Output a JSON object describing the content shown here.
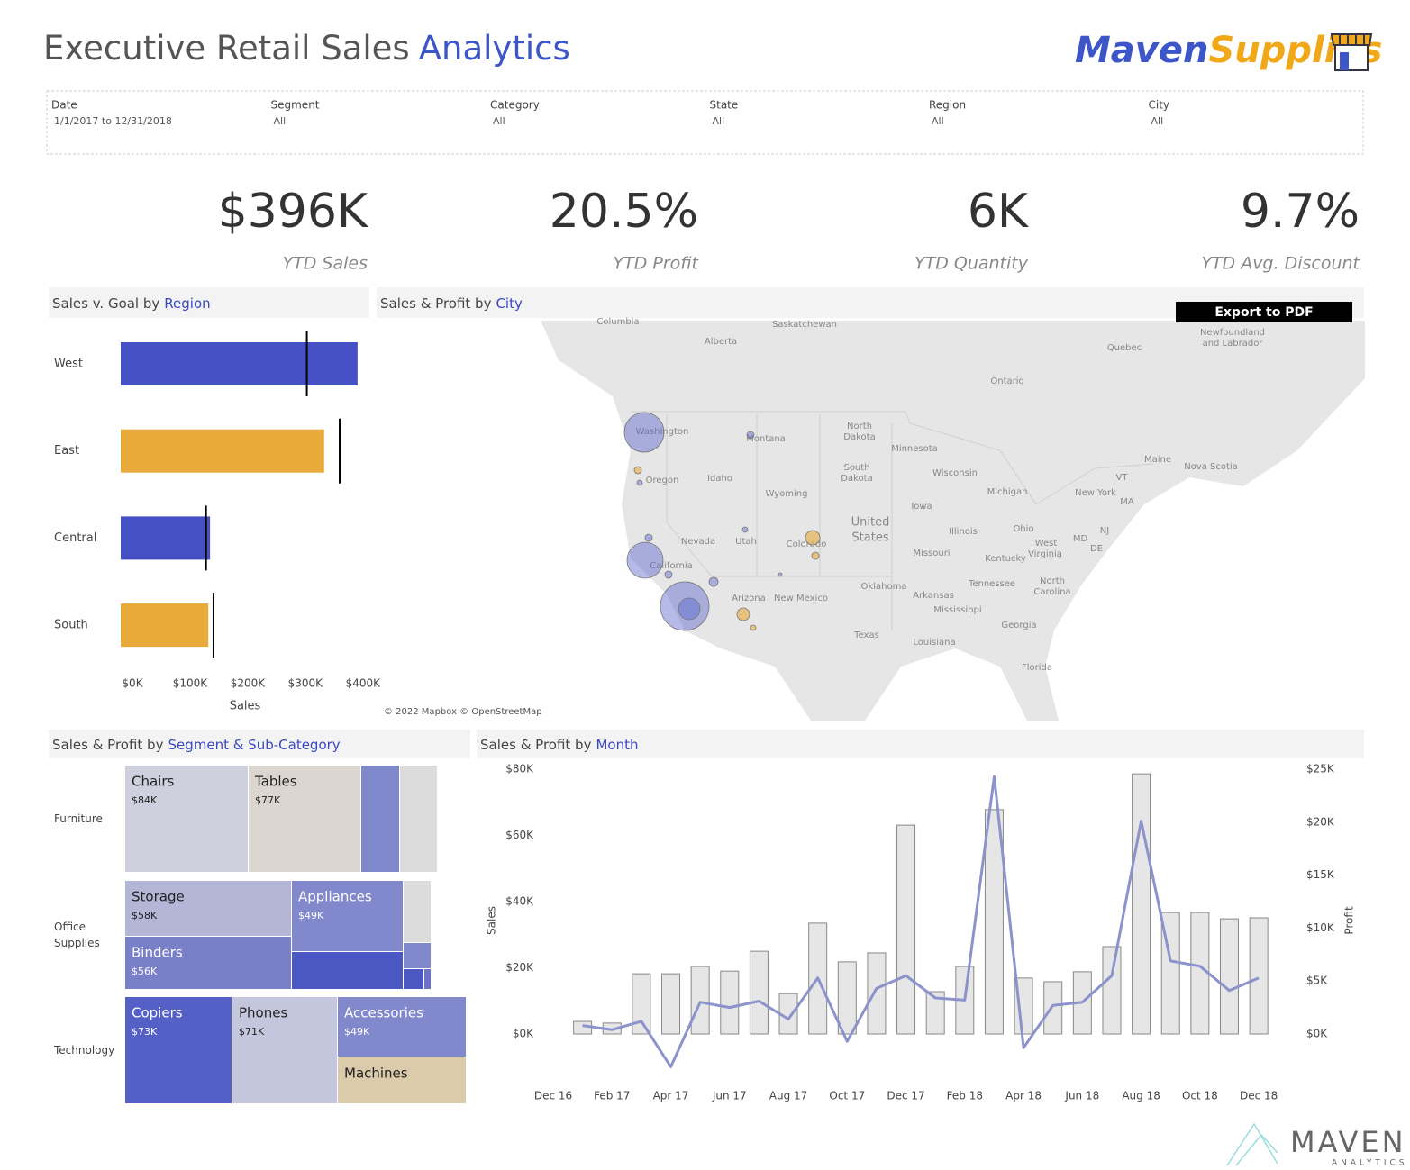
{
  "header": {
    "title": "Executive Retail Sales",
    "title_highlight": "Analytics",
    "logo_left": "Maven",
    "logo_right": "Supplies"
  },
  "filters": [
    {
      "label": "Date",
      "value": "1/1/2017 to 12/31/2018"
    },
    {
      "label": "Segment",
      "value": "All"
    },
    {
      "label": "Category",
      "value": "All"
    },
    {
      "label": "State",
      "value": "All"
    },
    {
      "label": "Region",
      "value": "All"
    },
    {
      "label": "City",
      "value": "All"
    }
  ],
  "kpis": [
    {
      "value": "$396K",
      "label": "YTD Sales"
    },
    {
      "value": "20.5%",
      "label": "YTD Profit"
    },
    {
      "value": "6K",
      "label": "YTD Quantity"
    },
    {
      "value": "9.7%",
      "label": "YTD Avg. Discount"
    }
  ],
  "export_button": "Export to PDF",
  "footer": {
    "brand": "MAVEN",
    "tagline": "ANALYTICS"
  },
  "chart_data": [
    {
      "type": "bullet",
      "title": "Sales v. Goal by",
      "title_highlight": "Region",
      "categories": [
        "West",
        "East",
        "Central",
        "South"
      ],
      "values": [
        411000,
        353000,
        155000,
        152000
      ],
      "colors": [
        "#4550c4",
        "#e8aa38",
        "#4550c4",
        "#e8aa38"
      ],
      "goals": [
        323000,
        380000,
        148000,
        161000
      ],
      "goal_color": "#000000",
      "xlim": [
        0,
        430000
      ],
      "xticks": [
        {
          "value": 0,
          "label": "$0K"
        },
        {
          "value": 100000,
          "label": "$100K"
        },
        {
          "value": 200000,
          "label": "$200K"
        },
        {
          "value": 300000,
          "label": "$300K"
        },
        {
          "value": 400000,
          "label": "$400K"
        }
      ],
      "xlabel": "Sales"
    },
    {
      "type": "map",
      "title": "Sales & Profit by",
      "title_highlight": "City",
      "labels": [
        "Columbia",
        "Saskatchewan",
        "Alberta",
        "Quebec",
        "Newfoundland",
        "and Labrador",
        "Ontario",
        "Washington",
        "Montana",
        "North",
        "Dakota",
        "Minnesota",
        "Oregon",
        "Idaho",
        "South",
        "Dakota",
        "Wisconsin",
        "Maine",
        "Nova Scotia",
        "Wyoming",
        "Michigan",
        "New York",
        "Iowa",
        "Nevada",
        "Utah",
        "Colorado",
        "United",
        "States",
        "Illinois",
        "Ohio",
        "MD",
        "NJ",
        "DE",
        "West",
        "Virginia",
        "VT",
        "MA",
        "California",
        "Missouri",
        "Kentucky",
        "Oklahoma",
        "Tennessee",
        "North",
        "Carolina",
        "Arizona",
        "New Mexico",
        "Arkansas",
        "Mississippi",
        "Georgia",
        "Texas",
        "Louisiana",
        "Florida"
      ],
      "attribution": "© 2022 Mapbox © OpenStreetMap"
    },
    {
      "type": "treemap",
      "title": "Sales & Profit by",
      "title_highlight": "Segment & Sub-Category",
      "segments": [
        {
          "name": "Furniture",
          "items": [
            {
              "name": "Chairs",
              "value": 84000,
              "value_label": "$84K",
              "color": "#cfd0de"
            },
            {
              "name": "Tables",
              "value": 77000,
              "value_label": "$77K",
              "color": "#dcd6d0"
            },
            {
              "name": null,
              "value": 26000,
              "value_label": null,
              "color": "#8088cc"
            },
            {
              "name": null,
              "value": 25000,
              "value_label": null,
              "color": "#dcdcdc"
            }
          ]
        },
        {
          "name": "Office Supplies",
          "items": [
            {
              "name": "Storage",
              "value": 58000,
              "value_label": "$58K",
              "color": "#b4b6d8"
            },
            {
              "name": "Binders",
              "value": 56000,
              "value_label": "$56K",
              "color": "#7a80c8"
            },
            {
              "name": "Appliances",
              "value": 49000,
              "value_label": "$49K",
              "color": "#8188cc"
            },
            {
              "name": null,
              "value": 26000,
              "value_label": null,
              "color": "#4b58c4"
            },
            {
              "name": null,
              "value": 11000,
              "value_label": null,
              "color": "#dcdcdc"
            },
            {
              "name": null,
              "value": 4400,
              "value_label": null,
              "color": "#8088cc"
            },
            {
              "name": null,
              "value": 2500,
              "value_label": null,
              "color": "#4b58c4"
            },
            {
              "name": null,
              "value": 800,
              "value_label": null,
              "color": "#6b73c9"
            }
          ]
        },
        {
          "name": "Technology",
          "items": [
            {
              "name": "Copiers",
              "value": 73000,
              "value_label": "$73K",
              "color": "#5560c6"
            },
            {
              "name": "Phones",
              "value": 71000,
              "value_label": "$71K",
              "color": "#c4c6dd"
            },
            {
              "name": "Accessories",
              "value": 49000,
              "value_label": "$49K",
              "color": "#8188cc"
            },
            {
              "name": "Machines",
              "value": 38000,
              "value_label": null,
              "color": "#dccbaa"
            }
          ]
        }
      ]
    },
    {
      "type": "combo",
      "title": "Sales & Profit by",
      "title_highlight": "Month",
      "categories": [
        "Dec 16",
        null,
        "Feb 17",
        null,
        "Apr 17",
        null,
        "Jun 17",
        null,
        "Aug 17",
        null,
        "Oct 17",
        null,
        "Dec 17",
        null,
        "Feb 18",
        null,
        "Apr 18",
        null,
        "Jun 18",
        null,
        "Aug 18",
        null,
        "Oct 18",
        null,
        "Dec 18"
      ],
      "series": [
        {
          "name": "Sales",
          "type": "bar",
          "color": "#e6e6e6",
          "values": [
            null,
            3800,
            3300,
            18200,
            18200,
            20400,
            19000,
            25000,
            12200,
            33500,
            21800,
            24500,
            63100,
            12800,
            20400,
            67800,
            16900,
            15800,
            18800,
            26400,
            78600,
            36700,
            36700,
            34800,
            35100
          ]
        },
        {
          "name": "Profit",
          "type": "line",
          "axis": "y2",
          "color": "#8c93cc",
          "values": [
            null,
            800,
            400,
            1200,
            -3100,
            3000,
            2500,
            3100,
            1400,
            5300,
            -700,
            4300,
            5500,
            3400,
            3200,
            24300,
            -1300,
            2700,
            3000,
            5500,
            20100,
            6900,
            6400,
            4100,
            5300
          ]
        }
      ],
      "ylim": [
        0,
        80000
      ],
      "yticks": [
        {
          "value": 0,
          "label": "$0K"
        },
        {
          "value": 20000,
          "label": "$20K"
        },
        {
          "value": 40000,
          "label": "$40K"
        },
        {
          "value": 60000,
          "label": "$60K"
        },
        {
          "value": 80000,
          "label": "$80K"
        }
      ],
      "y2lim": [
        0,
        25000
      ],
      "y2ticks": [
        {
          "value": 0,
          "label": "$0K"
        },
        {
          "value": 5000,
          "label": "$5K"
        },
        {
          "value": 10000,
          "label": "$10K"
        },
        {
          "value": 15000,
          "label": "$15K"
        },
        {
          "value": 20000,
          "label": "$20K"
        },
        {
          "value": 25000,
          "label": "$25K"
        }
      ]
    }
  ]
}
